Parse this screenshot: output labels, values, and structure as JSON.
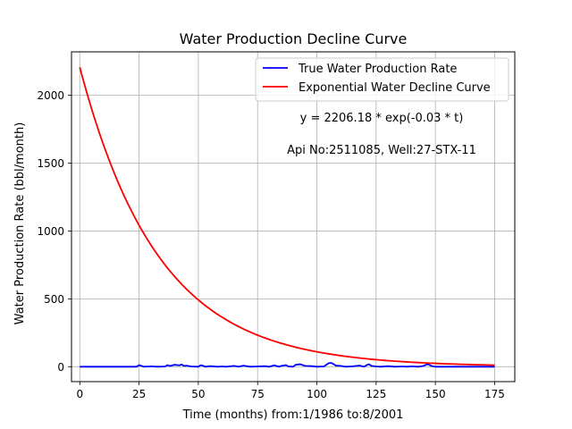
{
  "chart_data": {
    "type": "line",
    "title": "Water Production Decline Curve",
    "xlabel": "Time (months) from:1/1986 to:8/2001",
    "ylabel": "Water Production Rate (bbl/month)",
    "xlim": [
      -3.5,
      183.5
    ],
    "ylim": [
      -110,
      2320
    ],
    "xticks": [
      0,
      25,
      50,
      75,
      100,
      125,
      150,
      175
    ],
    "yticks": [
      0,
      500,
      1000,
      1500,
      2000
    ],
    "grid": true,
    "legend": {
      "placement": "top-right"
    },
    "annotations": [
      "y = 2206.18 * exp(-0.03 * t)",
      "Api No:2511085, Well:27-STX-11"
    ],
    "series": [
      {
        "name": "True Water Production Rate",
        "color": "#0000ff",
        "x": [
          0,
          5,
          10,
          15,
          20,
          24,
          25,
          26,
          27,
          30,
          33,
          36,
          37,
          38,
          40,
          42,
          43,
          44,
          45,
          47,
          50,
          51,
          52,
          53,
          55,
          58,
          60,
          62,
          65,
          67,
          69,
          72,
          75,
          78,
          80,
          82,
          84,
          85,
          87,
          88,
          90,
          91,
          93,
          95,
          98,
          100,
          103,
          104,
          105,
          106,
          107,
          108,
          110,
          112,
          115,
          118,
          120,
          121,
          122,
          123,
          125,
          127,
          130,
          133,
          136,
          138,
          140,
          143,
          145,
          146,
          147,
          148,
          149,
          150,
          155,
          160,
          165,
          170,
          175
        ],
        "y": [
          0,
          0,
          0,
          0,
          0,
          0,
          12,
          6,
          0,
          3,
          0,
          2,
          12,
          5,
          14,
          10,
          16,
          5,
          8,
          2,
          0,
          11,
          7,
          0,
          4,
          0,
          2,
          0,
          6,
          0,
          8,
          0,
          2,
          4,
          0,
          10,
          0,
          6,
          12,
          2,
          0,
          14,
          18,
          6,
          4,
          0,
          2,
          14,
          26,
          28,
          20,
          8,
          6,
          0,
          3,
          8,
          0,
          12,
          18,
          6,
          2,
          0,
          4,
          0,
          2,
          0,
          3,
          0,
          6,
          14,
          18,
          8,
          3,
          0,
          0,
          0,
          0,
          0,
          0
        ]
      },
      {
        "name": "Exponential Water Decline Curve",
        "color": "#ff0000",
        "a": 2206.18,
        "b": 0.03,
        "x_start": 0,
        "x_end": 175
      }
    ]
  }
}
